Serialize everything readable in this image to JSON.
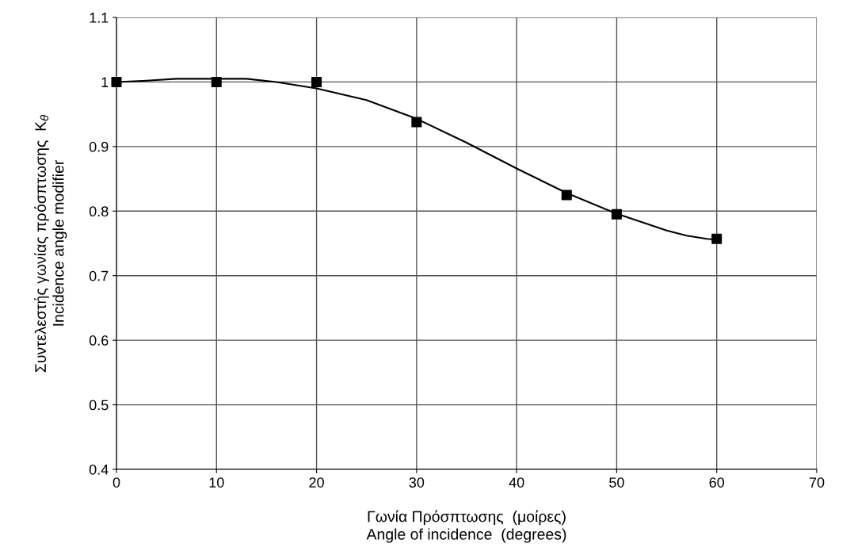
{
  "chart_data": {
    "type": "line",
    "xlabel": "Γωνία Πρόσπτωσης  (μοίρες)\nAngle of incidence  (degrees)",
    "ylabel": "Συντελεστής γωνίας πρόσπτωσης  K$_{θ}$\nIncidence angle modifier",
    "series": [
      {
        "color": "#000000",
        "marker": "none",
        "x": [
          0,
          3,
          6,
          10,
          13,
          16,
          20,
          25,
          30,
          35,
          40,
          45,
          50,
          55,
          57,
          59,
          60
        ],
        "values": [
          1.0,
          1.002,
          1.005,
          1.005,
          1.005,
          1.0,
          0.99,
          0.972,
          0.943,
          0.906,
          0.866,
          0.828,
          0.796,
          0.77,
          0.762,
          0.757,
          0.756
        ]
      },
      {
        "type": "scatter",
        "color": "#000000",
        "marker": "square",
        "x": [
          0,
          10,
          20,
          30,
          45,
          50,
          60
        ],
        "values": [
          1.0,
          1.0,
          1.0,
          0.938,
          0.825,
          0.795,
          0.757
        ]
      }
    ],
    "xlim": [
      0,
      70
    ],
    "xticks": [
      0,
      10,
      20,
      30,
      40,
      50,
      60,
      70
    ],
    "ylim": [
      0.4,
      1.1
    ],
    "yticks": [
      0.4,
      0.5,
      0.6,
      0.7,
      0.8,
      0.9,
      1,
      1.1
    ],
    "grid": true
  }
}
